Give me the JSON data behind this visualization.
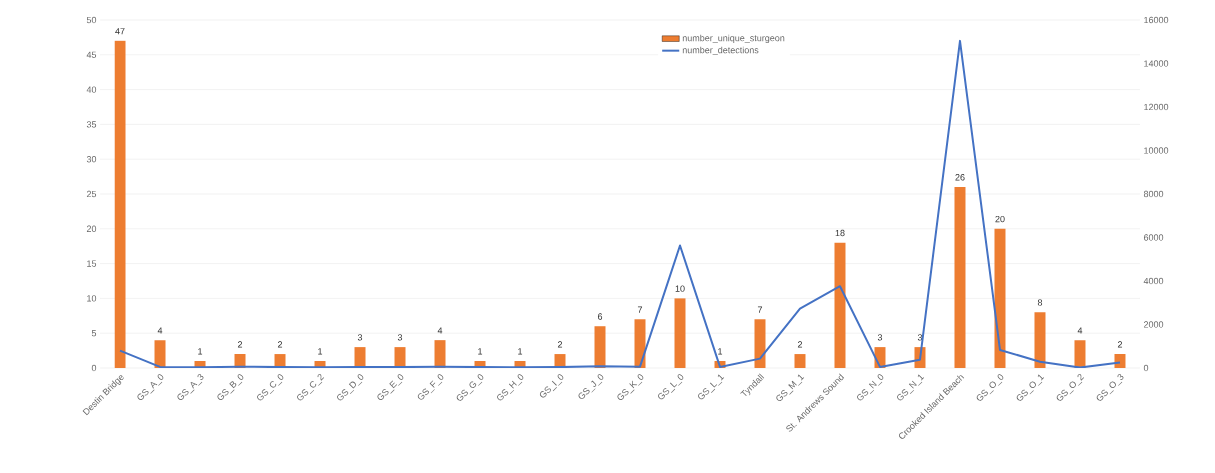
{
  "chart_data": {
    "type": "bar",
    "categories": [
      "Destin Bridge",
      "GS_A_0",
      "GS_A_3",
      "GS_B_0",
      "GS_C_0",
      "GS_C_2",
      "GS_D_0",
      "GS_E_0",
      "GS_F_0",
      "GS_G_0",
      "GS_H_0",
      "GS_I_0",
      "GS_J_0",
      "GS_K_0",
      "GS_L_0",
      "GS_L_1",
      "Tyndall",
      "GS_M_1",
      "St. Andrews Sound",
      "GS_N_0",
      "GS_N_1",
      "Crooked Island Beach",
      "GS_O_0",
      "GS_O_1",
      "GS_O_2",
      "GS_O_3"
    ],
    "series": [
      {
        "name": "number_unique_sturgeon",
        "color": "#ed7d31",
        "values": [
          47,
          4,
          1,
          2,
          2,
          1,
          3,
          3,
          4,
          1,
          1,
          2,
          6,
          7,
          10,
          1,
          7,
          2,
          18,
          3,
          3,
          26,
          20,
          8,
          4,
          2
        ],
        "value_labels": [
          "47",
          "4",
          "1",
          "2",
          "2",
          "1",
          "3",
          "3",
          "4",
          "1",
          "1",
          "2",
          "6",
          "7",
          "10",
          "1",
          "7",
          "2",
          "18",
          "3",
          "3",
          "26",
          "20",
          "8",
          "4",
          "2"
        ]
      },
      {
        "name": "number_detections",
        "type": "line",
        "axis": "y2",
        "color": "#4472c4",
        "values": [
          800,
          50,
          30,
          60,
          40,
          30,
          40,
          40,
          60,
          40,
          30,
          40,
          80,
          60,
          5630,
          50,
          430,
          2730,
          3760,
          50,
          380,
          15040,
          830,
          290,
          20,
          250
        ]
      }
    ],
    "ylim": [
      0,
      50
    ],
    "yticks": [
      0,
      5,
      10,
      15,
      20,
      25,
      30,
      35,
      40,
      45,
      50
    ],
    "y2lim": [
      0,
      16000
    ],
    "y2ticks": [
      0,
      2000,
      4000,
      6000,
      8000,
      10000,
      12000,
      14000,
      16000
    ],
    "grid": "y",
    "legend": "top",
    "marker": "none",
    "line_style": "solid"
  }
}
